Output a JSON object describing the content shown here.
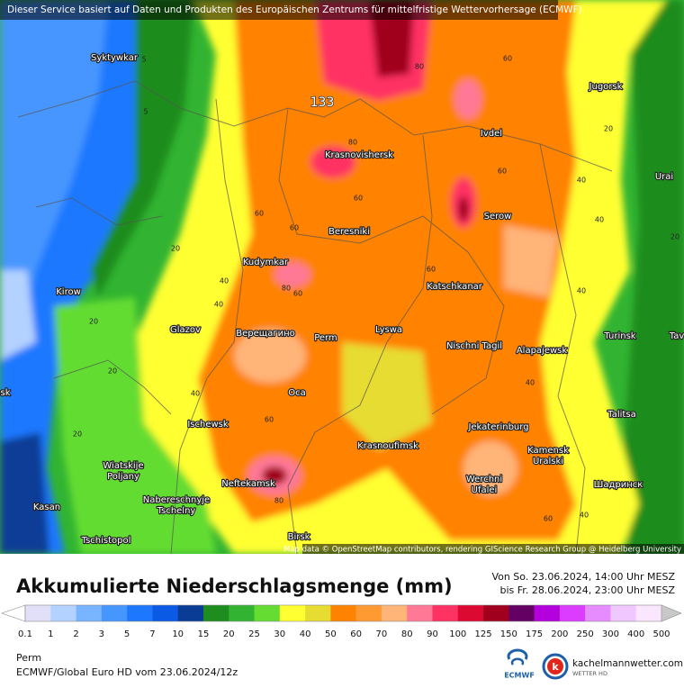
{
  "header": {
    "notice": "Dieser Service basiert auf Daten und Produkten des Europäischen Zentrums für mittelfristige Wettervorhersage (ECMWF)"
  },
  "map": {
    "places": [
      "Syktywkar",
      "Jugorsk",
      "Ivdel",
      "Urai",
      "Krasnovishersk",
      "Serow",
      "Beresniki",
      "Kudymkar",
      "Kirow",
      "Katschkanar",
      "Glazov",
      "Верещагино",
      "Perm",
      "Lyswa",
      "Nischni Tagil",
      "Alapajewsk",
      "Turinsk",
      "Tav",
      "sk",
      "Oca",
      "Talitsa",
      "Ischewsk",
      "Jekaterinburg",
      "Krasnoufimsk",
      "Kamensk",
      "Uralski",
      "Wiatskije",
      "Poljany",
      "Neftekamsk",
      "Werchni",
      "Ufalei",
      "Шадринск",
      "Nabereschnyje",
      "Tschelny",
      "Kasan",
      "Tschistopol",
      "Birsk"
    ],
    "contour_labels": [
      5,
      5,
      20,
      20,
      20,
      20,
      20,
      20,
      40,
      40,
      40,
      40,
      40,
      40,
      40,
      40,
      60,
      60,
      60,
      60,
      60,
      60,
      60,
      60,
      60,
      80,
      80,
      80,
      80
    ],
    "maximum": 133,
    "attribution": "Map data © OpenStreetMap contributors, rendering GIScience Research Group @ Heidelberg University"
  },
  "legend": {
    "title": "Akkumulierte Niederschlagsmenge (mm)",
    "period_from": "Von So. 23.06.2024, 14:00 Uhr MESZ",
    "period_to": "bis Fr. 28.06.2024, 23:00 Uhr MESZ",
    "ticks": [
      0.1,
      1,
      2,
      3,
      5,
      7,
      10,
      15,
      20,
      25,
      30,
      40,
      50,
      60,
      70,
      80,
      90,
      100,
      125,
      150,
      175,
      200,
      250,
      300,
      400,
      500
    ],
    "under_color": "#ffffff",
    "colors": [
      "#e2e0f8",
      "#b4d2ff",
      "#78b4ff",
      "#4696ff",
      "#1e78ff",
      "#0a5ae6",
      "#0a3c96",
      "#1e8c1e",
      "#32b432",
      "#64dc32",
      "#ffff32",
      "#e6dc32",
      "#ff8200",
      "#ff9a32",
      "#ffb478",
      "#ff7896",
      "#ff3264",
      "#dc0a32",
      "#a0001e",
      "#640064",
      "#b400dc",
      "#dc3cff",
      "#e68cff",
      "#f0c8ff",
      "#fae6ff"
    ],
    "over_color": "#c8c8c8"
  },
  "footer": {
    "location": "Perm",
    "model": "ECMWF/Global Euro HD vom  23.06.2024/12z",
    "ecmwf_logo": "ECMWF",
    "site": "kachelmannwetter.com",
    "site_sub": "WETTER HD"
  }
}
